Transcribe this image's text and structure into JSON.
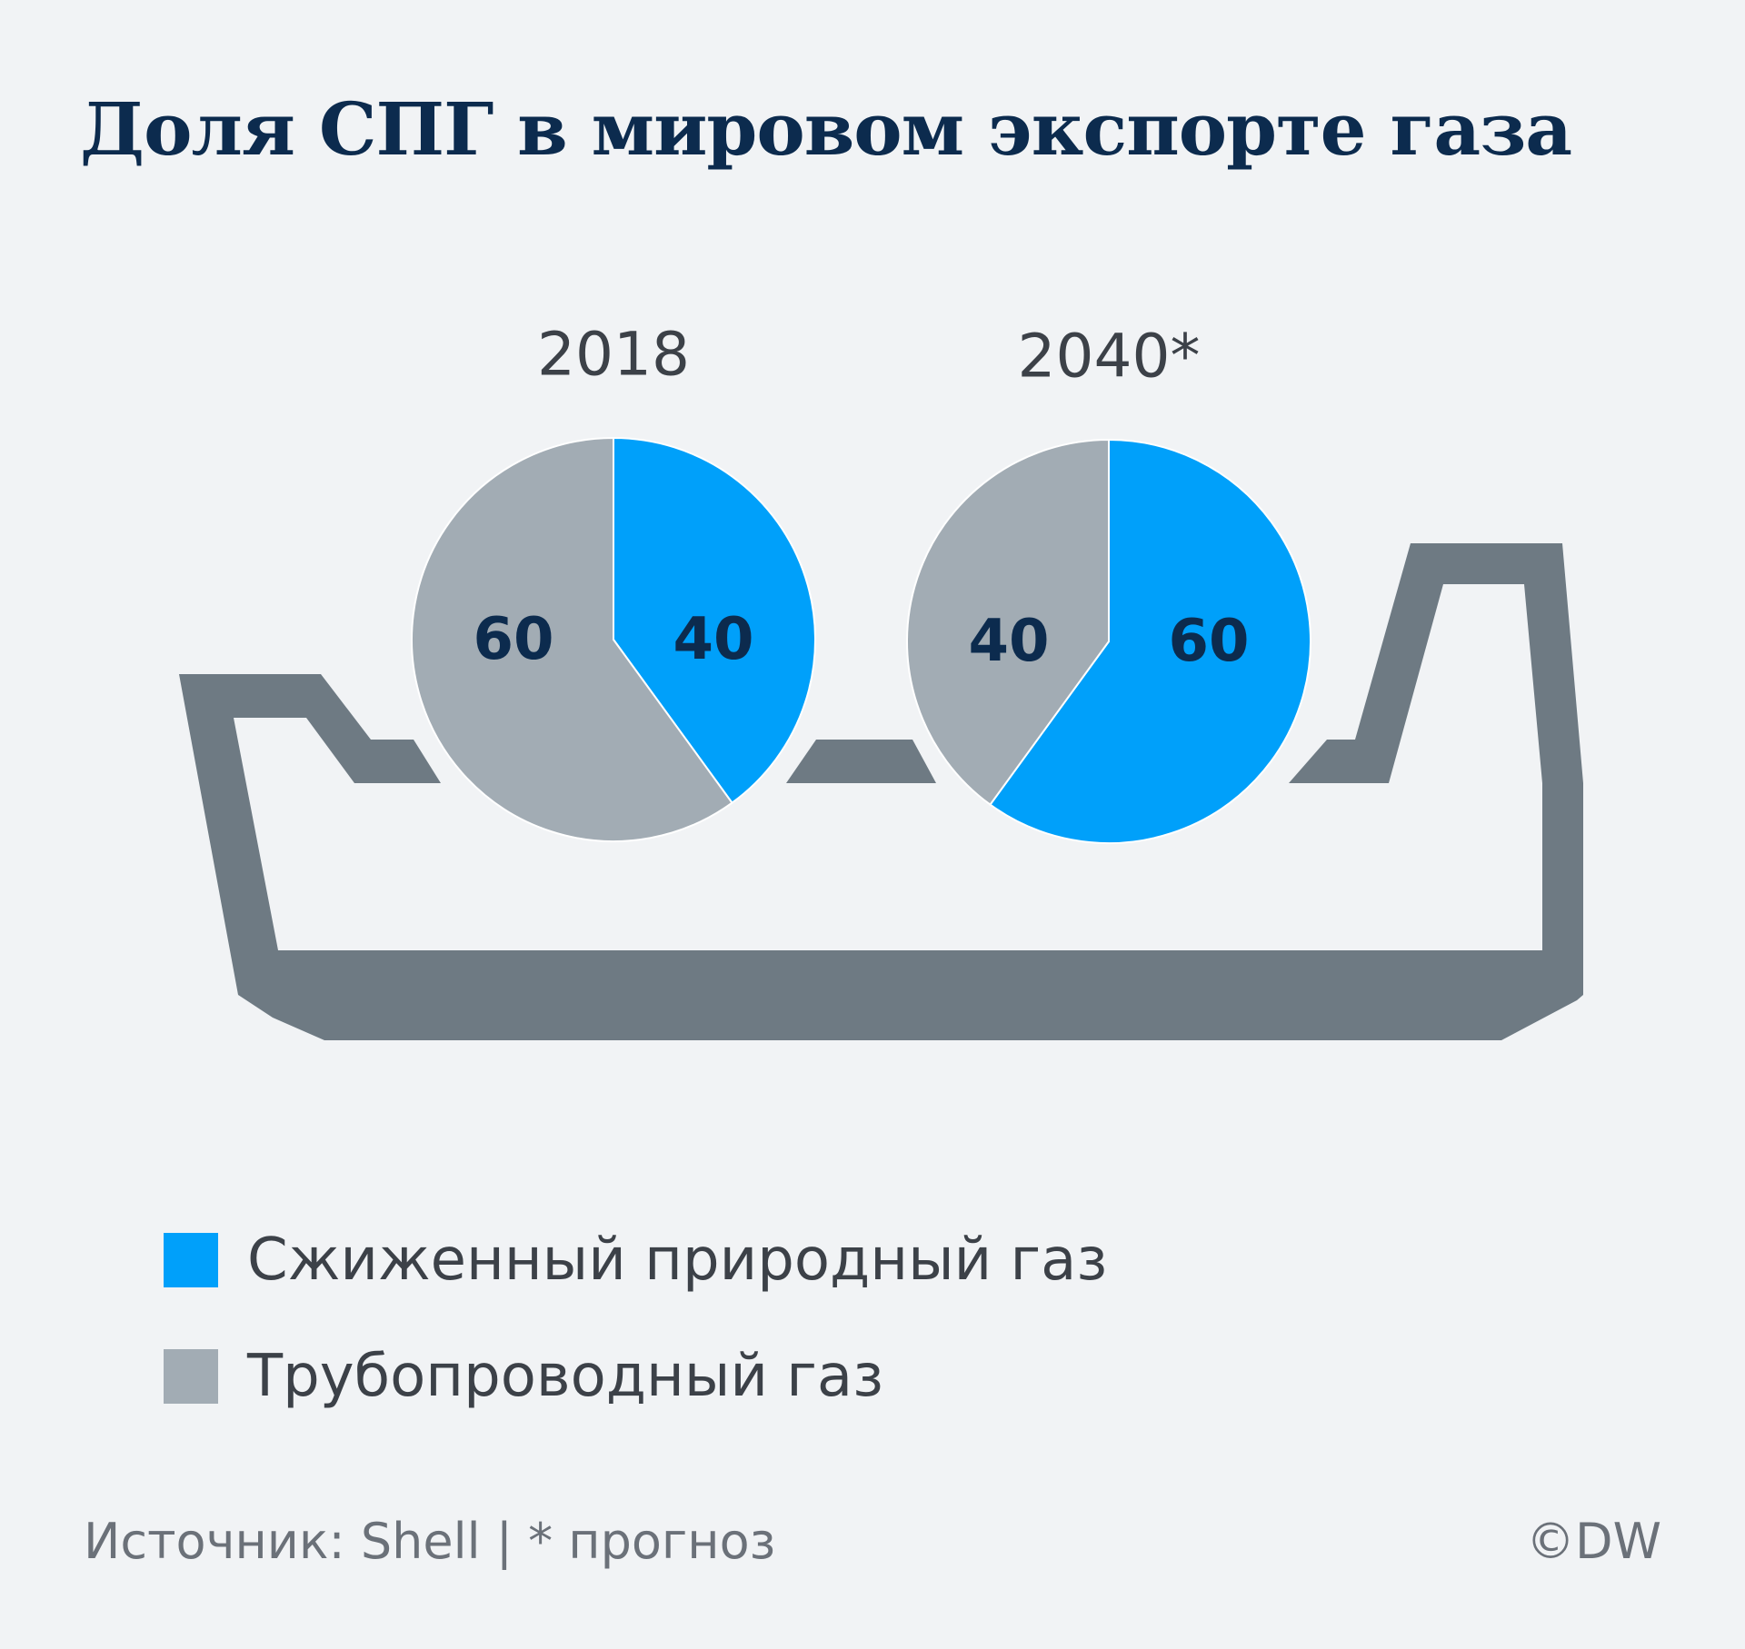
{
  "colors": {
    "background": "#f1f3f5",
    "lng": "#00a0fa",
    "pipeline": "#a2acb4",
    "tanker": "#6e7a83",
    "title": "#0c2b4e",
    "value_label": "#0c2b4e",
    "text": "#3c4148",
    "footer": "#6b7179"
  },
  "title": "Доля СПГ в мировом экспорте газа",
  "chart_data": [
    {
      "type": "pie",
      "title": "2018",
      "unit": "%",
      "slices": [
        {
          "label": "Сжиженный природный газ",
          "value": 40
        },
        {
          "label": "Трубопроводный газ",
          "value": 60
        }
      ]
    },
    {
      "type": "pie",
      "title": "2040*",
      "unit": "%",
      "slices": [
        {
          "label": "Сжиженный природный газ",
          "value": 60
        },
        {
          "label": "Трубопроводный газ",
          "value": 40
        }
      ]
    }
  ],
  "legend": {
    "position": "bottom-left",
    "items": [
      {
        "label": "Сжиженный природный газ",
        "color": "#00a0fa"
      },
      {
        "label": "Трубопроводный газ",
        "color": "#a2acb4"
      }
    ]
  },
  "footer": {
    "source": "Источник: Shell | * прогноз",
    "credit": "©DW"
  }
}
